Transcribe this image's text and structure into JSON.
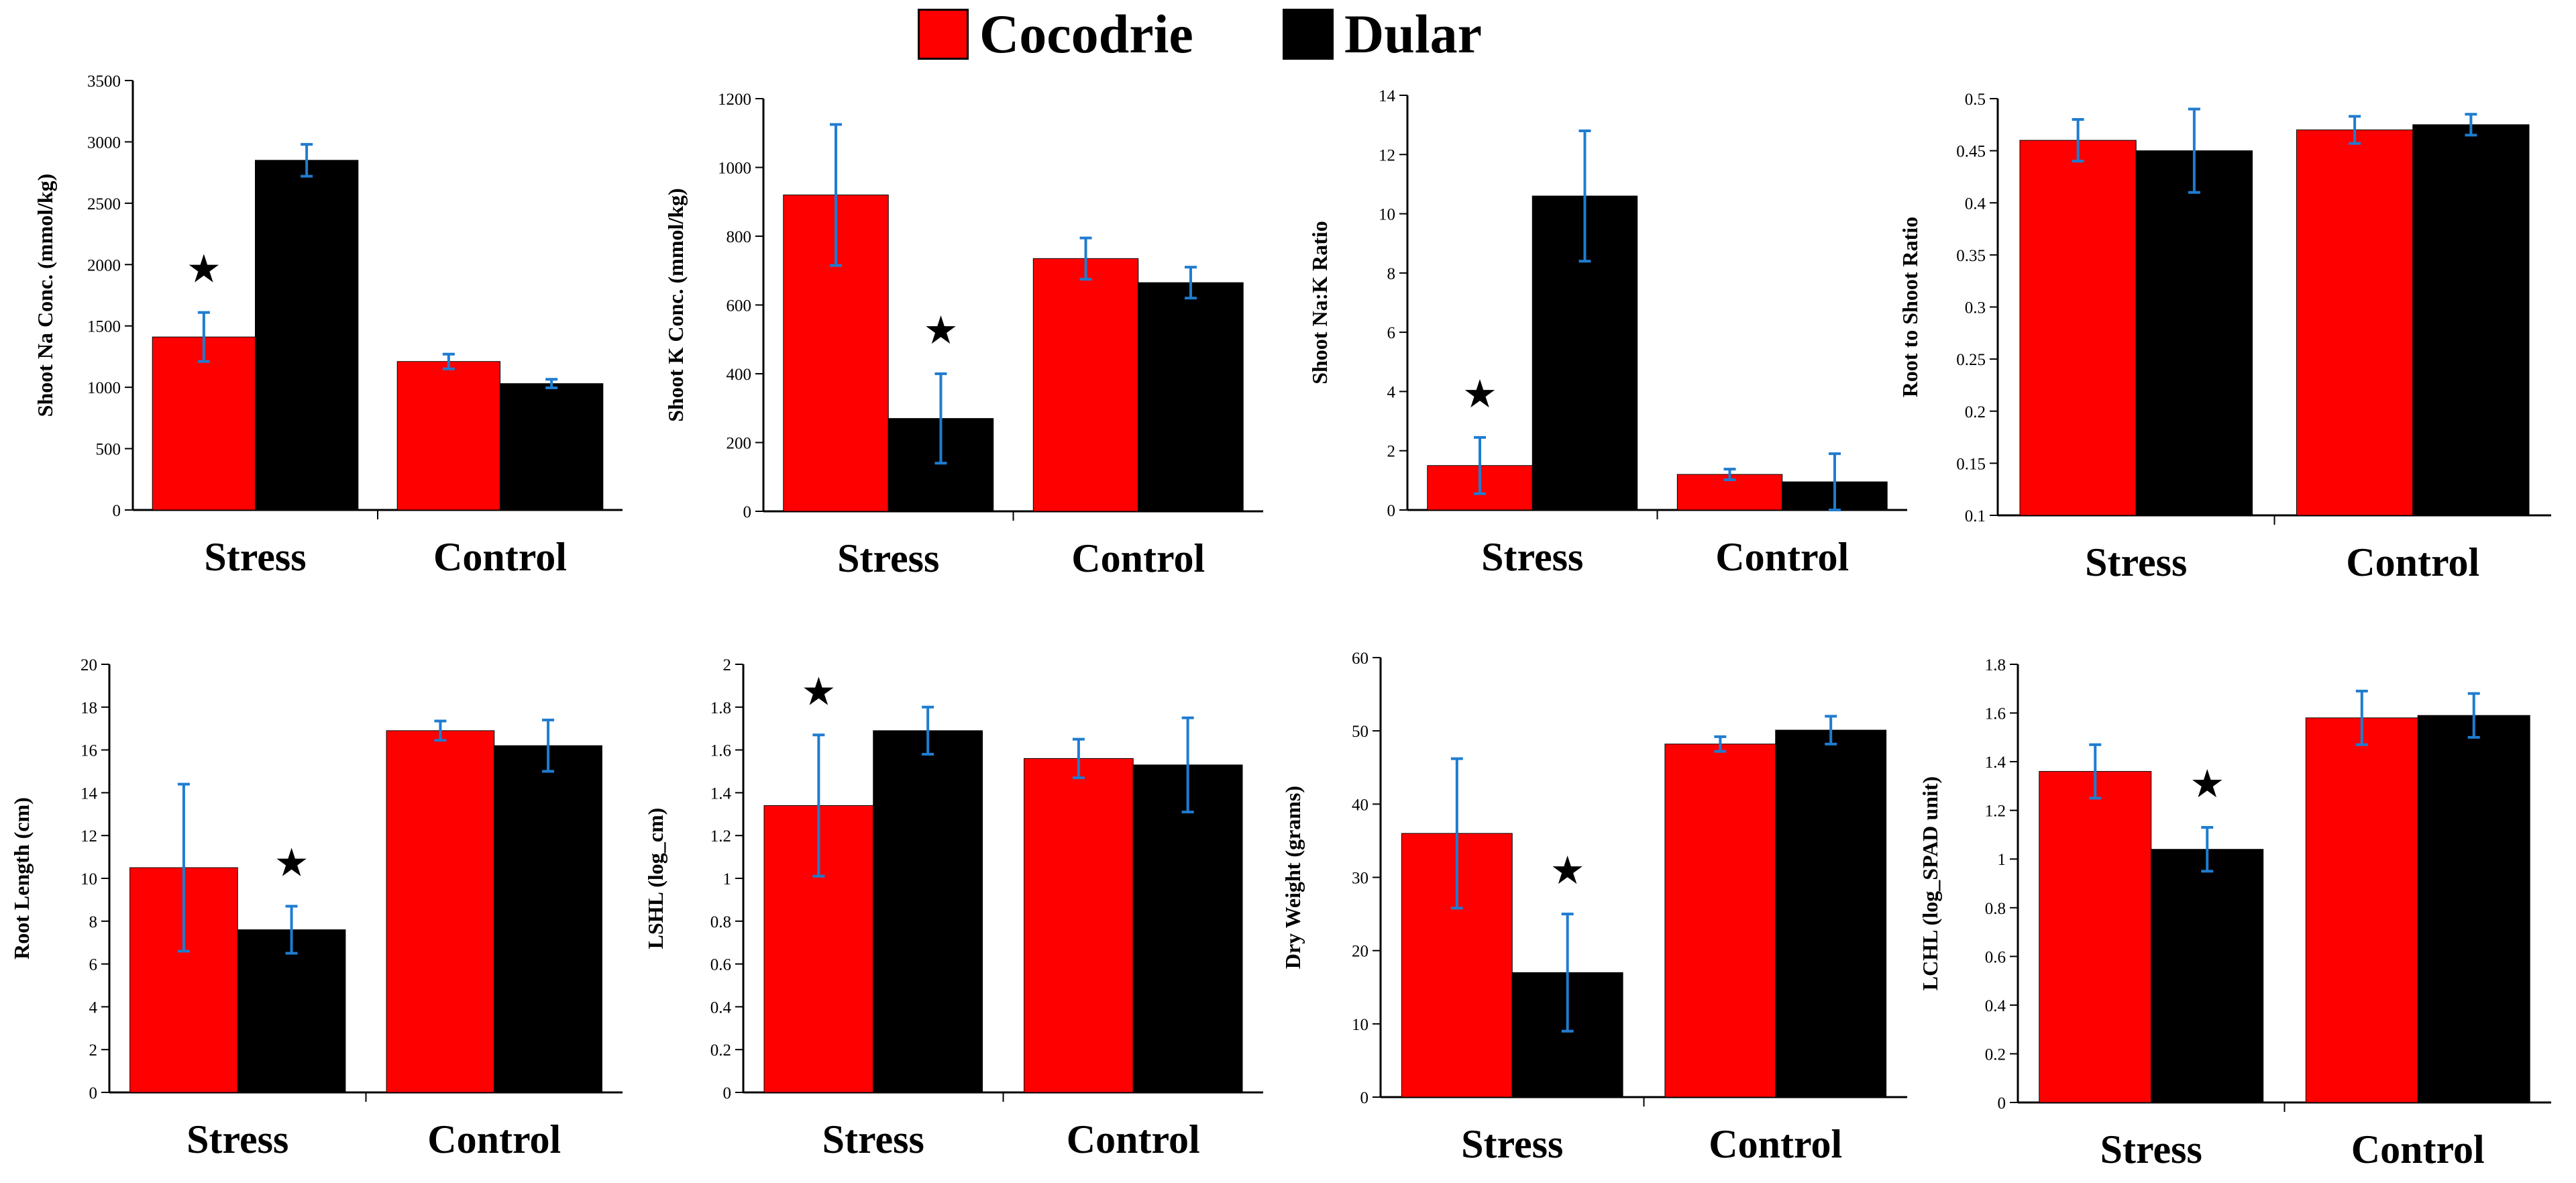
{
  "legend": [
    {
      "label": "Cocodrie",
      "color": "#ff0000"
    },
    {
      "label": "Dular",
      "color": "#000000"
    }
  ],
  "colors": {
    "cocodrie": "#ff0000",
    "dular": "#000000",
    "error_bar": "#1f7cd0",
    "axis": "#000000"
  },
  "star_symbol": "★",
  "chart_data": [
    {
      "type": "bar",
      "ylabel": "Shoot Na Conc. (mmol/kg)",
      "categories": [
        "Stress",
        "Control"
      ],
      "yticks": [
        0,
        500,
        1000,
        1500,
        2000,
        2500,
        3000,
        3500
      ],
      "ylim": [
        0,
        3500
      ],
      "series": [
        {
          "name": "Cocodrie",
          "values": [
            1410,
            1210
          ],
          "errors": [
            200,
            60
          ]
        },
        {
          "name": "Dular",
          "values": [
            2850,
            1030
          ],
          "errors": [
            130,
            35
          ]
        }
      ],
      "stars": [
        {
          "category": 0,
          "series": 0
        }
      ]
    },
    {
      "type": "bar",
      "ylabel": "Shoot K Conc. (mmol/kg)",
      "categories": [
        "Stress",
        "Control"
      ],
      "yticks": [
        0,
        200,
        400,
        600,
        800,
        1000,
        1200
      ],
      "ylim": [
        0,
        1200
      ],
      "series": [
        {
          "name": "Cocodrie",
          "values": [
            920,
            735
          ],
          "errors": [
            205,
            60
          ]
        },
        {
          "name": "Dular",
          "values": [
            270,
            665
          ],
          "errors": [
            130,
            45
          ]
        }
      ],
      "stars": [
        {
          "category": 0,
          "series": 1
        }
      ]
    },
    {
      "type": "bar",
      "ylabel": "Shoot Na:K Ratio",
      "categories": [
        "Stress",
        "Control"
      ],
      "yticks": [
        0,
        2,
        4,
        6,
        8,
        10,
        12,
        14
      ],
      "ylim": [
        0,
        14
      ],
      "series": [
        {
          "name": "Cocodrie",
          "values": [
            1.5,
            1.2
          ],
          "errors": [
            0.95,
            0.18
          ]
        },
        {
          "name": "Dular",
          "values": [
            10.6,
            0.95
          ],
          "errors": [
            2.2,
            0.95
          ]
        }
      ],
      "stars": [
        {
          "category": 0,
          "series": 0
        }
      ]
    },
    {
      "type": "bar",
      "ylabel": "Root to Shoot Ratio",
      "categories": [
        "Stress",
        "Control"
      ],
      "yticks": [
        0.1,
        0.15,
        0.2,
        0.25,
        0.3,
        0.35,
        0.4,
        0.45,
        0.5
      ],
      "ylim": [
        0.1,
        0.5
      ],
      "series": [
        {
          "name": "Cocodrie",
          "values": [
            0.46,
            0.47
          ],
          "errors": [
            0.02,
            0.013
          ]
        },
        {
          "name": "Dular",
          "values": [
            0.45,
            0.475
          ],
          "errors": [
            0.04,
            0.01
          ]
        }
      ],
      "stars": []
    },
    {
      "type": "bar",
      "ylabel": "Root Length (cm)",
      "categories": [
        "Stress",
        "Control"
      ],
      "yticks": [
        0,
        2,
        4,
        6,
        8,
        10,
        12,
        14,
        16,
        18,
        20
      ],
      "ylim": [
        0,
        20
      ],
      "series": [
        {
          "name": "Cocodrie",
          "values": [
            10.5,
            16.9
          ],
          "errors": [
            3.9,
            0.45
          ]
        },
        {
          "name": "Dular",
          "values": [
            7.6,
            16.2
          ],
          "errors": [
            1.1,
            1.2
          ]
        }
      ],
      "stars": [
        {
          "category": 0,
          "series": 1
        }
      ]
    },
    {
      "type": "bar",
      "ylabel": "LSHL  (log_cm)",
      "categories": [
        "Stress",
        "Control"
      ],
      "yticks": [
        0,
        0.2,
        0.4,
        0.6,
        0.8,
        1,
        1.2,
        1.4,
        1.6,
        1.8,
        2
      ],
      "ylim": [
        0,
        2
      ],
      "series": [
        {
          "name": "Cocodrie",
          "values": [
            1.34,
            1.56
          ],
          "errors": [
            0.33,
            0.09
          ]
        },
        {
          "name": "Dular",
          "values": [
            1.69,
            1.53
          ],
          "errors": [
            0.11,
            0.22
          ]
        }
      ],
      "stars": [
        {
          "category": 0,
          "series": 0
        }
      ]
    },
    {
      "type": "bar",
      "ylabel": "Dry Weight (grams)",
      "categories": [
        "Stress",
        "Control"
      ],
      "yticks": [
        0,
        10,
        20,
        30,
        40,
        50,
        60
      ],
      "ylim": [
        0,
        60
      ],
      "series": [
        {
          "name": "Cocodrie",
          "values": [
            36,
            48.2
          ],
          "errors": [
            10.2,
            1
          ]
        },
        {
          "name": "Dular",
          "values": [
            17,
            50.1
          ],
          "errors": [
            8,
            1.9
          ]
        }
      ],
      "stars": [
        {
          "category": 0,
          "series": 1
        }
      ]
    },
    {
      "type": "bar",
      "ylabel": "LCHL (log_SPAD unit)",
      "categories": [
        "Stress",
        "Control"
      ],
      "yticks": [
        0,
        0.2,
        0.4,
        0.6,
        0.8,
        1,
        1.2,
        1.4,
        1.6,
        1.8
      ],
      "ylim": [
        0,
        1.8
      ],
      "series": [
        {
          "name": "Cocodrie",
          "values": [
            1.36,
            1.58
          ],
          "errors": [
            0.11,
            0.11
          ]
        },
        {
          "name": "Dular",
          "values": [
            1.04,
            1.59
          ],
          "errors": [
            0.09,
            0.09
          ]
        }
      ],
      "stars": [
        {
          "category": 0,
          "series": 1
        }
      ]
    }
  ]
}
